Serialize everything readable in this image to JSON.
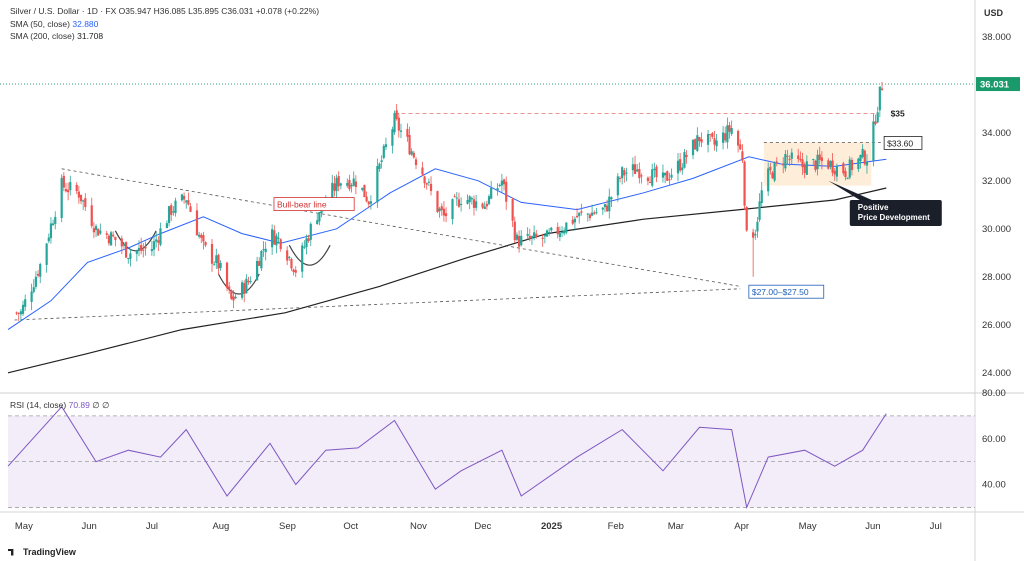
{
  "header": {
    "symbol": "Silver / U.S. Dollar · 1D · FX",
    "ohlc": "O35.947 H36.085 L35.895 C36.031 +0.078 (+0.22%)",
    "sma50_label": "SMA (50, close)",
    "sma50_value": "32.880",
    "sma200_label": "SMA (200, close)",
    "sma200_value": "31.708"
  },
  "currency": "USD",
  "rsi_legend": {
    "label": "RSI (14, close)",
    "value": "70.89",
    "extra": "∅  ∅"
  },
  "logo_text": "TradingView",
  "annotations": {
    "bull_bear": "Bull-bear line",
    "level_35": "$35",
    "level_3360": "$33.60",
    "range_support": "$27.00–$27.50",
    "positive": "Positive\nPrice Development"
  },
  "colors": {
    "up": "#26a69a",
    "down": "#ef5350",
    "sma50": "#2962ff",
    "sma200": "#222222",
    "rsi": "#7e57c2",
    "last_price": "#1a9a6a"
  },
  "chart_data": [
    {
      "type": "candlestick",
      "title": "Silver / U.S. Dollar · 1D · FX",
      "ylim": [
        23.2,
        39.2
      ],
      "yticks": [
        24,
        26,
        28,
        30,
        32,
        34,
        36,
        38
      ],
      "ytick_labels": [
        "24.000",
        "26.000",
        "28.000",
        "30.000",
        "32.000",
        "34.000",
        "36.000",
        "38.000"
      ],
      "last_price": 36.031,
      "last_price_label": "36.031",
      "x_labels": [
        "May",
        "Jun",
        "Jul",
        "Aug",
        "Sep",
        "Oct",
        "Nov",
        "Dec",
        "2025",
        "Feb",
        "Mar",
        "Apr",
        "May",
        "Jun",
        "Jul"
      ],
      "close_anchors": [
        [
          "2024-05-01",
          26.5
        ],
        [
          "2024-05-10",
          28.5
        ],
        [
          "2024-05-20",
          31.8
        ],
        [
          "2024-05-28",
          31.5
        ],
        [
          "2024-06-05",
          30.0
        ],
        [
          "2024-06-15",
          29.5
        ],
        [
          "2024-06-20",
          29.0
        ],
        [
          "2024-07-01",
          29.2
        ],
        [
          "2024-07-10",
          30.8
        ],
        [
          "2024-07-17",
          31.3
        ],
        [
          "2024-07-25",
          29.2
        ],
        [
          "2024-08-01",
          28.5
        ],
        [
          "2024-08-07",
          27.0
        ],
        [
          "2024-08-15",
          27.8
        ],
        [
          "2024-08-25",
          29.8
        ],
        [
          "2024-08-30",
          29.5
        ],
        [
          "2024-09-06",
          28.3
        ],
        [
          "2024-09-15",
          30.5
        ],
        [
          "2024-09-26",
          32.0
        ],
        [
          "2024-10-04",
          32.0
        ],
        [
          "2024-10-10",
          31.2
        ],
        [
          "2024-10-22",
          34.5
        ],
        [
          "2024-10-28",
          33.6
        ],
        [
          "2024-11-05",
          32.2
        ],
        [
          "2024-11-10",
          31.0
        ],
        [
          "2024-11-14",
          30.5
        ],
        [
          "2024-11-22",
          31.3
        ],
        [
          "2024-12-03",
          31.0
        ],
        [
          "2024-12-11",
          32.0
        ],
        [
          "2024-12-18",
          29.5
        ],
        [
          "2025-01-01",
          29.6
        ],
        [
          "2025-01-15",
          30.5
        ],
        [
          "2025-01-28",
          30.8
        ],
        [
          "2025-02-05",
          32.3
        ],
        [
          "2025-02-12",
          32.5
        ],
        [
          "2025-02-24",
          32.0
        ],
        [
          "2025-03-05",
          32.8
        ],
        [
          "2025-03-13",
          33.8
        ],
        [
          "2025-03-20",
          33.5
        ],
        [
          "2025-03-28",
          34.2
        ],
        [
          "2025-04-02",
          33.0
        ],
        [
          "2025-04-04",
          29.6
        ],
        [
          "2025-04-08",
          30.0
        ],
        [
          "2025-04-12",
          32.0
        ],
        [
          "2025-04-22",
          33.0
        ],
        [
          "2025-04-30",
          32.6
        ],
        [
          "2025-05-10",
          32.8
        ],
        [
          "2025-05-20",
          32.4
        ],
        [
          "2025-05-28",
          33.0
        ],
        [
          "2025-05-31",
          33.0
        ],
        [
          "2025-06-03",
          34.7
        ],
        [
          "2025-06-05",
          35.6
        ],
        [
          "2025-06-06",
          36.0
        ]
      ],
      "sma50_anchors": [
        [
          "2024-04-25",
          25.8
        ],
        [
          "2024-05-15",
          27.0
        ],
        [
          "2024-06-01",
          28.6
        ],
        [
          "2024-06-20",
          29.2
        ],
        [
          "2024-07-05",
          29.8
        ],
        [
          "2024-07-25",
          30.5
        ],
        [
          "2024-08-12",
          29.8
        ],
        [
          "2024-08-30",
          29.4
        ],
        [
          "2024-09-25",
          30.0
        ],
        [
          "2024-10-20",
          31.5
        ],
        [
          "2024-11-10",
          32.5
        ],
        [
          "2024-11-30",
          32.0
        ],
        [
          "2024-12-20",
          31.1
        ],
        [
          "2025-01-15",
          30.8
        ],
        [
          "2025-02-15",
          31.5
        ],
        [
          "2025-03-10",
          32.1
        ],
        [
          "2025-04-05",
          33.0
        ],
        [
          "2025-04-20",
          32.7
        ],
        [
          "2025-05-15",
          32.6
        ],
        [
          "2025-06-08",
          32.9
        ]
      ],
      "sma200_anchors": [
        [
          "2024-04-25",
          24.0
        ],
        [
          "2024-06-01",
          24.8
        ],
        [
          "2024-07-15",
          25.8
        ],
        [
          "2024-09-01",
          26.5
        ],
        [
          "2024-10-15",
          27.6
        ],
        [
          "2024-11-25",
          28.8
        ],
        [
          "2025-01-01",
          29.8
        ],
        [
          "2025-02-15",
          30.4
        ],
        [
          "2025-04-01",
          30.8
        ],
        [
          "2025-05-15",
          31.2
        ],
        [
          "2025-06-08",
          31.7
        ]
      ],
      "sma50_value": 32.88,
      "sma200_value": 31.708
    },
    {
      "type": "line",
      "title": "RSI (14, close)",
      "ylim": [
        28,
        80
      ],
      "yticks": [
        40,
        60,
        80
      ],
      "ytick_labels": [
        "40.00",
        "60.00",
        "80.00"
      ],
      "levels": [
        70,
        50,
        30
      ],
      "last_value": 70.89,
      "anchors": [
        [
          "2024-04-25",
          48
        ],
        [
          "2024-05-20",
          74
        ],
        [
          "2024-06-05",
          50
        ],
        [
          "2024-06-20",
          55
        ],
        [
          "2024-07-05",
          52
        ],
        [
          "2024-07-17",
          64
        ],
        [
          "2024-08-05",
          35
        ],
        [
          "2024-08-25",
          58
        ],
        [
          "2024-09-06",
          40
        ],
        [
          "2024-09-20",
          55
        ],
        [
          "2024-10-05",
          56
        ],
        [
          "2024-10-22",
          68
        ],
        [
          "2024-11-10",
          38
        ],
        [
          "2024-11-22",
          46
        ],
        [
          "2024-12-11",
          55
        ],
        [
          "2024-12-20",
          35
        ],
        [
          "2025-01-15",
          52
        ],
        [
          "2025-02-05",
          64
        ],
        [
          "2025-02-24",
          46
        ],
        [
          "2025-03-13",
          65
        ],
        [
          "2025-03-28",
          64
        ],
        [
          "2025-04-04",
          30
        ],
        [
          "2025-04-14",
          52
        ],
        [
          "2025-05-01",
          55
        ],
        [
          "2025-05-15",
          48
        ],
        [
          "2025-05-28",
          55
        ],
        [
          "2025-06-08",
          71
        ]
      ]
    }
  ]
}
